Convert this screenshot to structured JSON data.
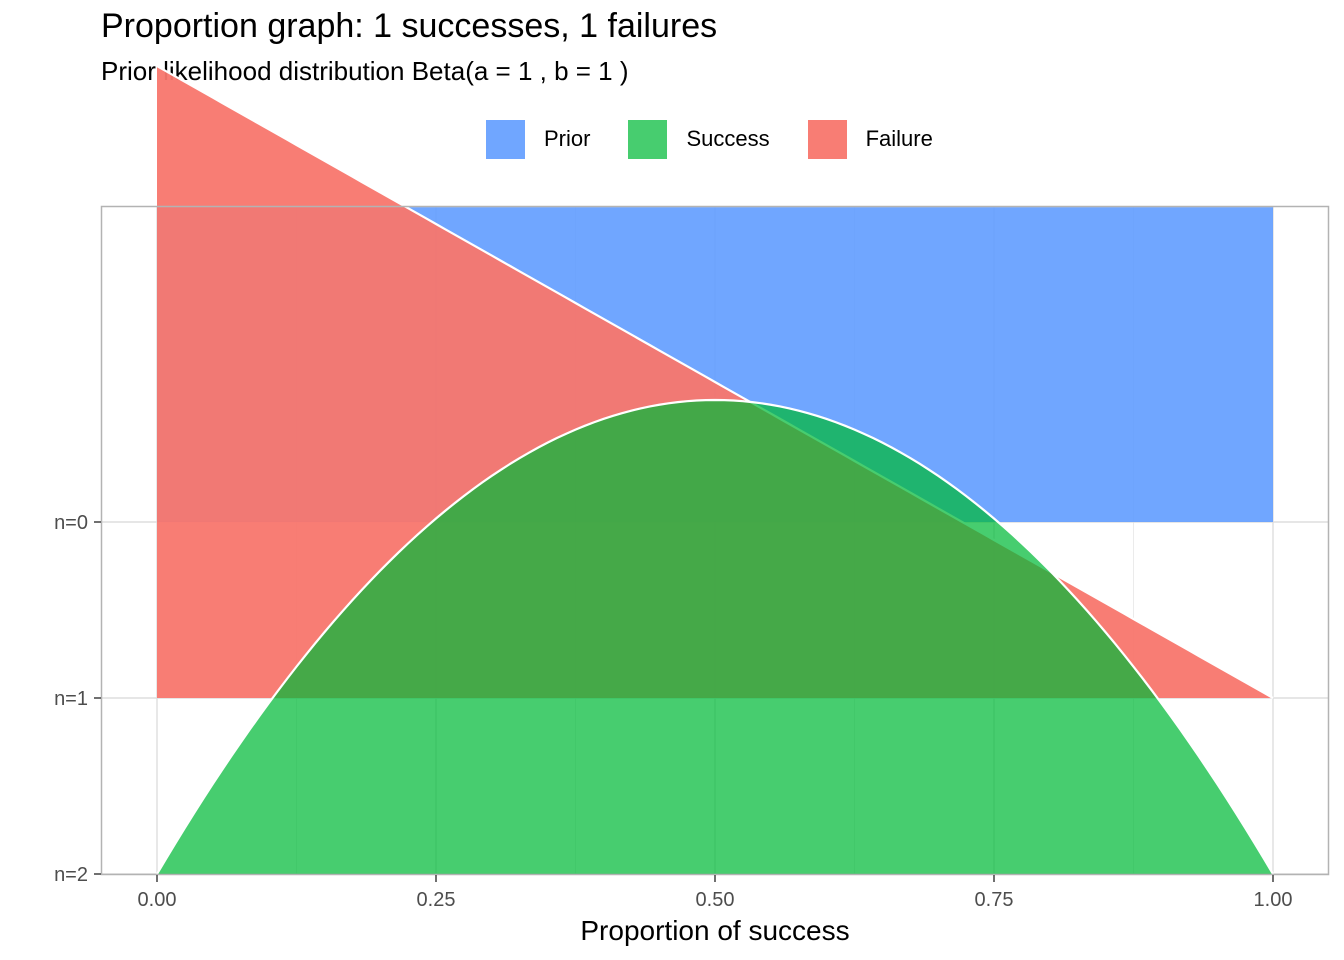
{
  "chart_data": {
    "type": "area",
    "title": "Proportion graph: 1 successes, 1 failures",
    "subtitle": "Prior likelihood distribution Beta(a = 1 , b = 1 )",
    "xlabel": "Proportion of success",
    "ylabel": "",
    "xlim": [
      0,
      1
    ],
    "x_ticks": [
      "0.00",
      "0.25",
      "0.50",
      "0.75",
      "1.00"
    ],
    "y_ticks": [
      "n=0",
      "n=1",
      "n=2"
    ],
    "legend_position": "top",
    "grid": true,
    "series": [
      {
        "name": "Prior",
        "color": "#619CFF",
        "baseline": "n=0",
        "density": "Beta(1,1)",
        "x": [
          0,
          0.5,
          1
        ],
        "y": [
          1,
          1,
          1
        ]
      },
      {
        "name": "Failure",
        "color": "#F8766D",
        "baseline": "n=1",
        "density": "Beta(1,2)",
        "x": [
          0,
          0.5,
          1
        ],
        "y": [
          2,
          1,
          0
        ]
      },
      {
        "name": "Success",
        "color": "#00BA38",
        "baseline": "n=2",
        "density": "Beta(2,2)",
        "x": [
          0,
          0.25,
          0.5,
          0.75,
          1
        ],
        "y": [
          0,
          1.125,
          1.5,
          1.125,
          0
        ]
      }
    ]
  }
}
